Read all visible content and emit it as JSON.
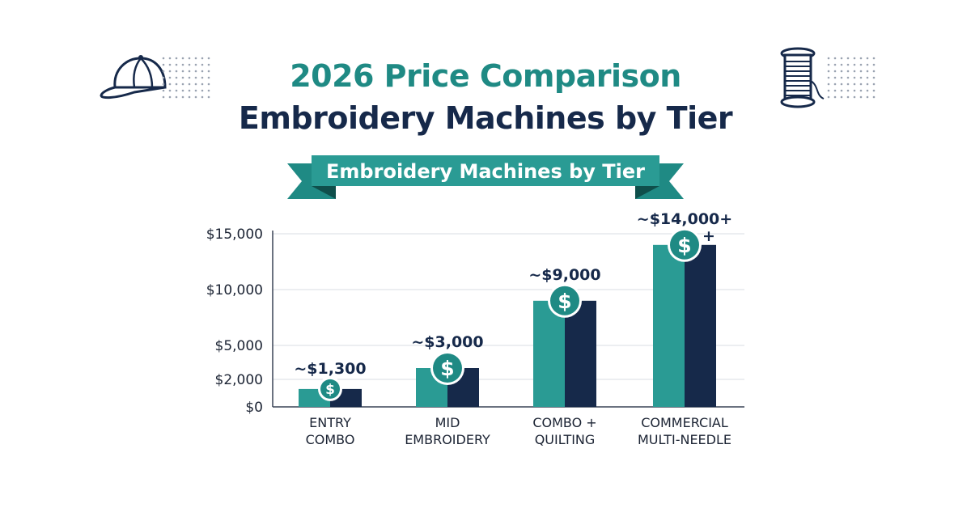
{
  "title_line1": "2026 Price Comparison",
  "title_line2": "Embroidery Machines by Tier",
  "banner_text": "Embroidery Machines by Tier",
  "colors": {
    "teal": "#1f8a84",
    "teal_light": "#2a9b94",
    "navy": "#16294a",
    "grid": "#d9dde3",
    "axis_text": "#1b2333"
  },
  "icons": [
    "baseball-cap-icon",
    "thread-spool-icon",
    "dollar-coin-icon"
  ],
  "chart_data": {
    "type": "bar",
    "title": "",
    "xlabel": "",
    "ylabel": "",
    "ylim": [
      0,
      15000
    ],
    "y_ticks": [
      0,
      2000,
      5000,
      10000,
      15000
    ],
    "y_tick_labels": [
      "$0",
      "$2,000",
      "$5,000",
      "$10,000",
      "$15,000"
    ],
    "grid": true,
    "categories": [
      [
        "ENTRY",
        "COMBO"
      ],
      [
        "MID",
        "EMBROIDERY"
      ],
      [
        "COMBO +",
        "QUILTING"
      ],
      [
        "COMMERCIAL",
        "MULTI-NEEDLE"
      ]
    ],
    "values": [
      1300,
      3000,
      9000,
      14000
    ],
    "data_labels": [
      "~$1,300",
      "~$3,000",
      "~$9,000",
      "~$14,000+"
    ],
    "extra_annotation": {
      "category_index": 3,
      "text": "+"
    }
  }
}
